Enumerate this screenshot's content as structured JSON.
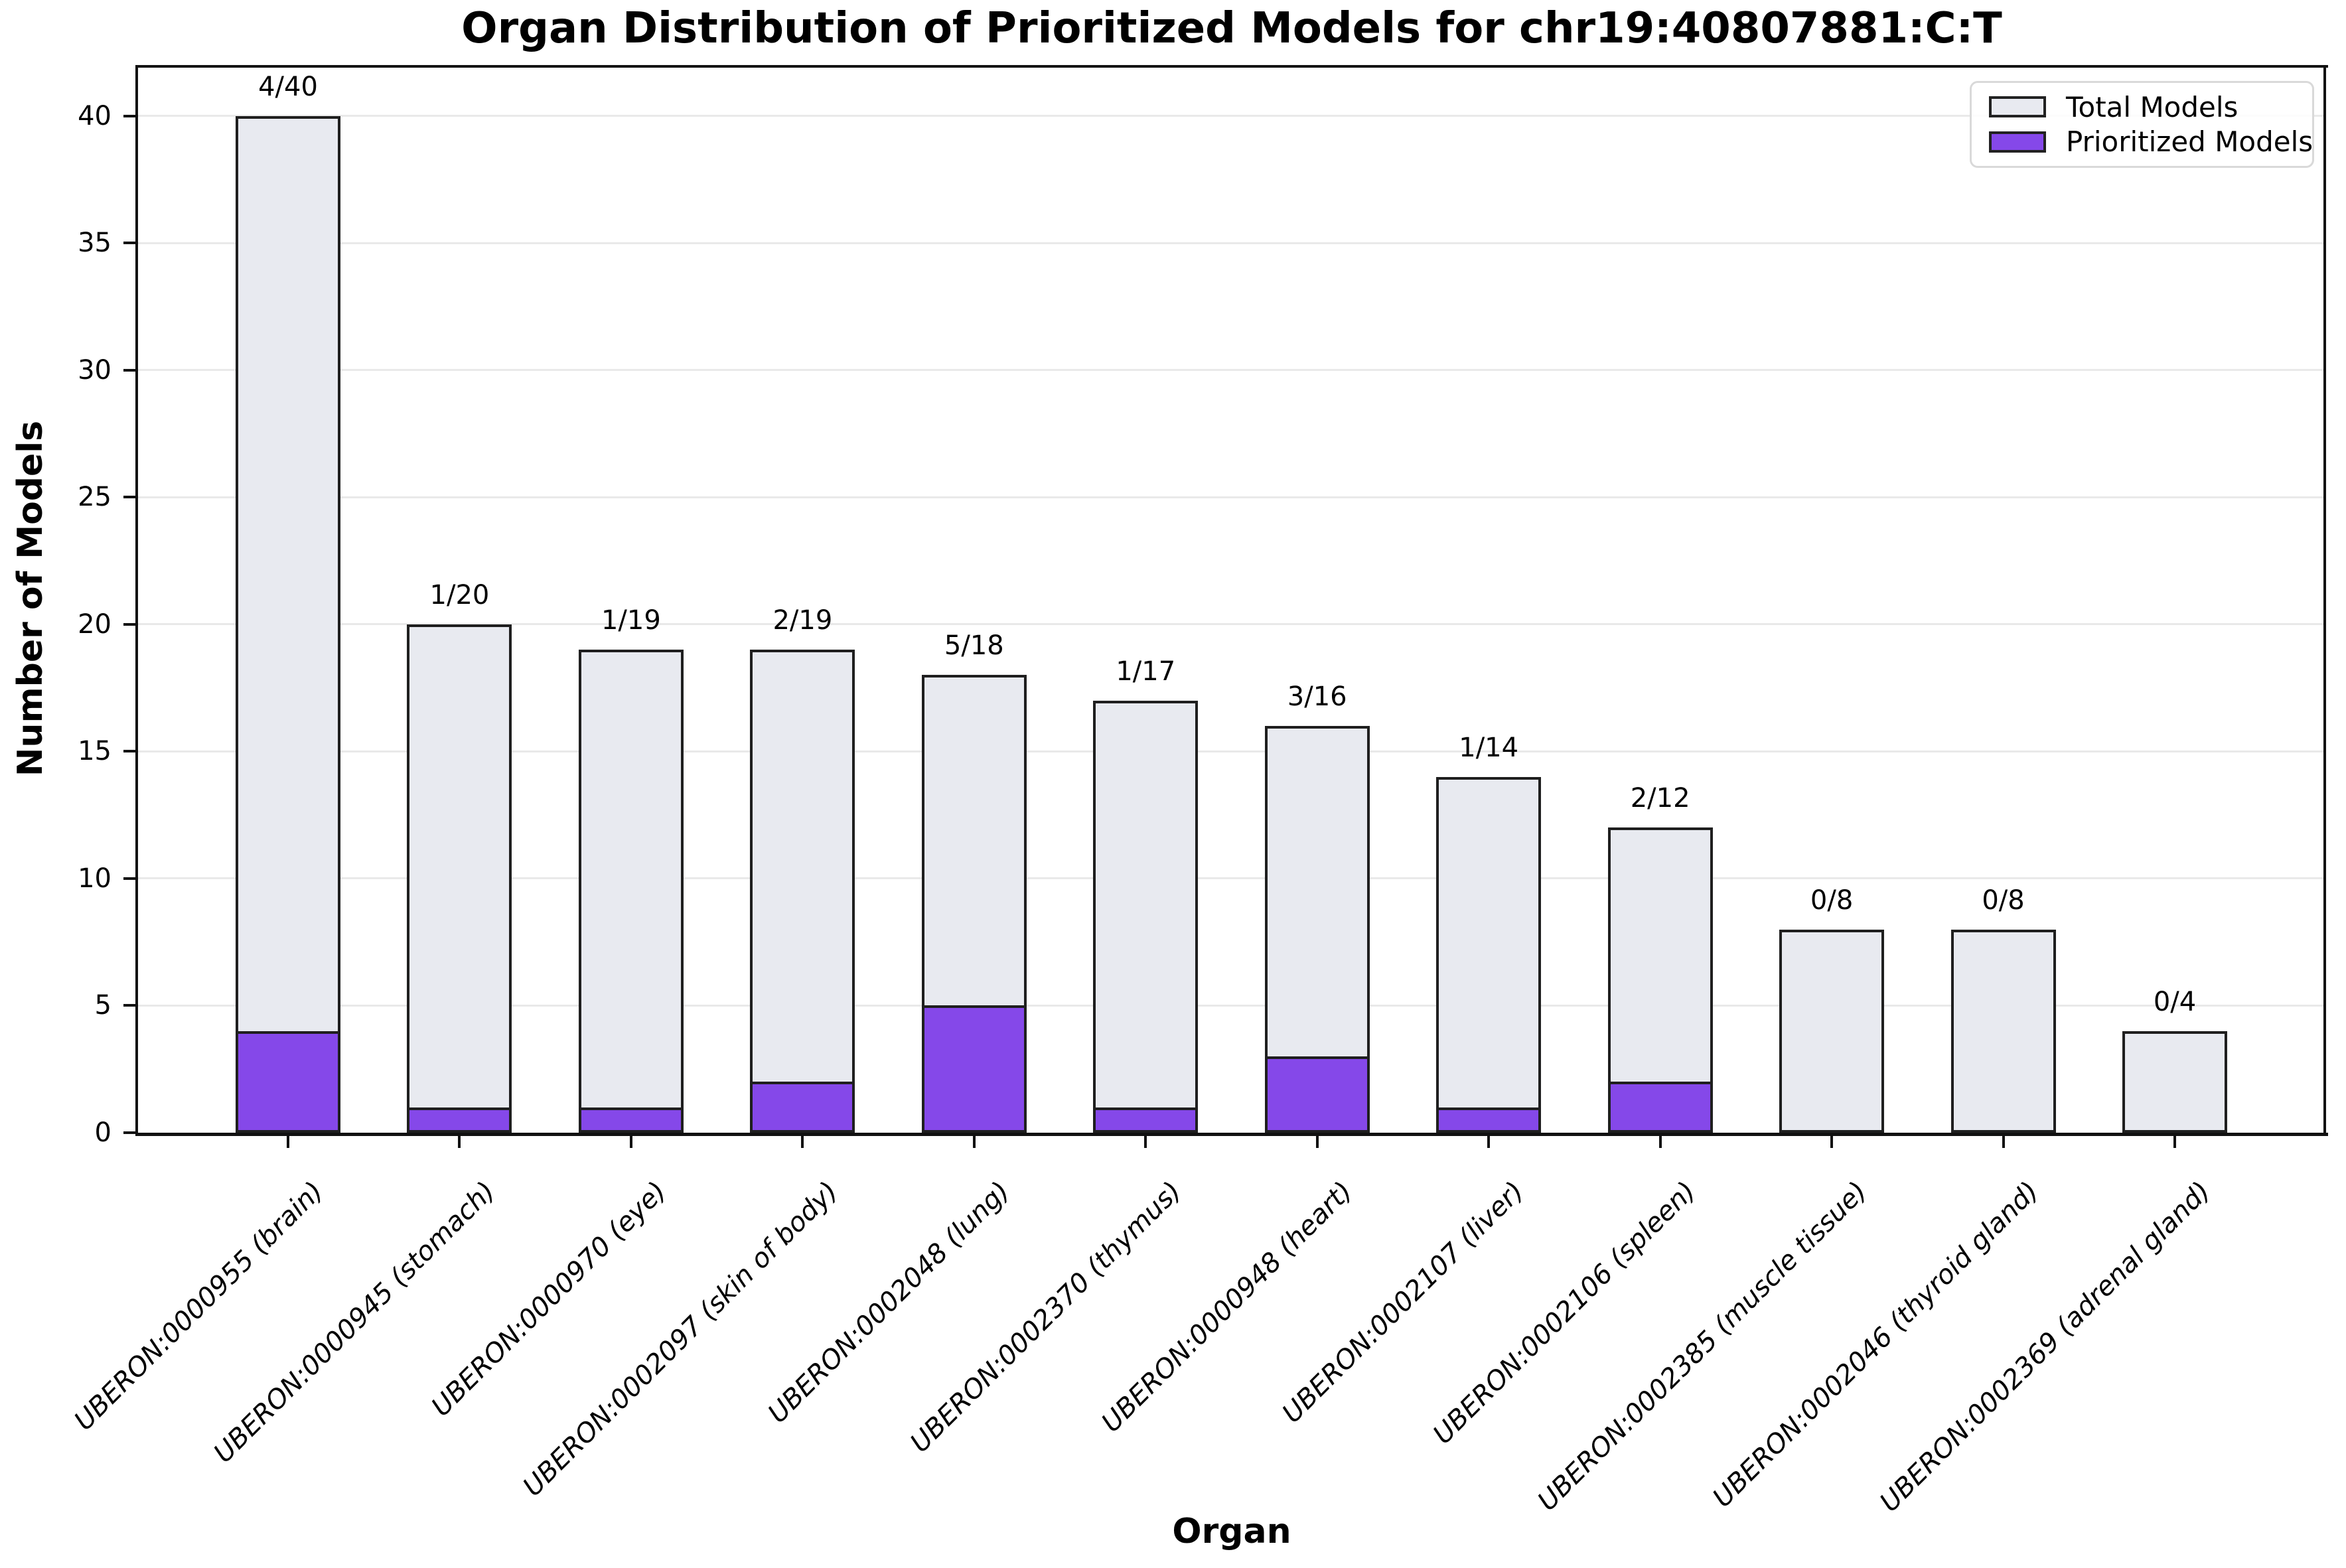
{
  "chart_data": {
    "type": "bar",
    "title": "Organ Distribution of Prioritized Models for chr19:40807881:C:T",
    "xlabel": "Organ",
    "ylabel": "Number of Models",
    "ylim": [
      0,
      42
    ],
    "yticks": [
      0,
      5,
      10,
      15,
      20,
      25,
      30,
      35,
      40
    ],
    "grid": "horizontal light gray lines",
    "legend_position": "upper right",
    "categories": [
      "UBERON:0000955 (brain)",
      "UBERON:0000945 (stomach)",
      "UBERON:0000970 (eye)",
      "UBERON:0002097 (skin of body)",
      "UBERON:0002048 (lung)",
      "UBERON:0002370 (thymus)",
      "UBERON:0000948 (heart)",
      "UBERON:0002107 (liver)",
      "UBERON:0002106 (spleen)",
      "UBERON:0002385 (muscle tissue)",
      "UBERON:0002046 (thyroid gland)",
      "UBERON:0002369 (adrenal gland)"
    ],
    "series": [
      {
        "name": "Total Models",
        "color": "#e8eaf0",
        "values": [
          40,
          20,
          19,
          19,
          18,
          17,
          16,
          14,
          12,
          8,
          8,
          4
        ]
      },
      {
        "name": "Prioritized Models",
        "color": "#8548e9",
        "values": [
          4,
          1,
          1,
          2,
          5,
          1,
          3,
          1,
          2,
          0,
          0,
          0
        ]
      }
    ],
    "annotations": [
      "4/40",
      "1/20",
      "1/19",
      "2/19",
      "5/18",
      "1/17",
      "3/16",
      "1/14",
      "2/12",
      "0/8",
      "0/8",
      "0/4"
    ]
  },
  "legend": {
    "items": [
      {
        "label": "Total Models",
        "color": "#e8eaf0"
      },
      {
        "label": "Prioritized Models",
        "color": "#8548e9"
      }
    ]
  },
  "colors": {
    "background": "#ffffff",
    "total_fill": "#e8eaf0",
    "prioritized_fill": "#8548e9",
    "bar_edge": "#1f1f1f",
    "grid": "#e9e9e9",
    "spine": "#111111",
    "legend_border": "#d9d9d9"
  }
}
